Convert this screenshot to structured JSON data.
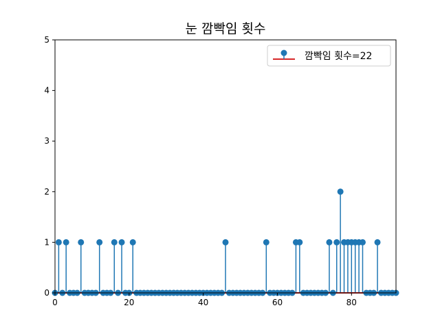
{
  "chart_data": {
    "type": "stem",
    "title": "눈 깜빡임 횟수",
    "xlabel": "",
    "ylabel": "",
    "xlim": [
      0,
      92
    ],
    "ylim": [
      0,
      5
    ],
    "xticks": [
      0,
      20,
      40,
      60,
      80
    ],
    "yticks": [
      0,
      1,
      2,
      3,
      4,
      5
    ],
    "grid": false,
    "legend_position": "top-right",
    "series": [
      {
        "name": "깜빡임 횟수=22",
        "color": "#1f77b4",
        "baseline_color": "#d62728",
        "x": [
          0,
          1,
          2,
          3,
          4,
          5,
          6,
          7,
          8,
          9,
          10,
          11,
          12,
          13,
          14,
          15,
          16,
          17,
          18,
          19,
          20,
          21,
          22,
          23,
          24,
          25,
          26,
          27,
          28,
          29,
          30,
          31,
          32,
          33,
          34,
          35,
          36,
          37,
          38,
          39,
          40,
          41,
          42,
          43,
          44,
          45,
          46,
          47,
          48,
          49,
          50,
          51,
          52,
          53,
          54,
          55,
          56,
          57,
          58,
          59,
          60,
          61,
          62,
          63,
          64,
          65,
          66,
          67,
          68,
          69,
          70,
          71,
          72,
          73,
          74,
          75,
          76,
          77,
          78,
          79,
          80,
          81,
          82,
          83,
          84,
          85,
          86,
          87,
          88,
          89,
          90,
          91,
          92
        ],
        "y": [
          0,
          1,
          0,
          1,
          0,
          0,
          0,
          1,
          0,
          0,
          0,
          0,
          1,
          0,
          0,
          0,
          1,
          0,
          1,
          0,
          0,
          1,
          0,
          0,
          0,
          0,
          0,
          0,
          0,
          0,
          0,
          0,
          0,
          0,
          0,
          0,
          0,
          0,
          0,
          0,
          0,
          0,
          0,
          0,
          0,
          0,
          1,
          0,
          0,
          0,
          0,
          0,
          0,
          0,
          0,
          0,
          0,
          1,
          0,
          0,
          0,
          0,
          0,
          0,
          0,
          1,
          1,
          0,
          0,
          0,
          0,
          0,
          0,
          0,
          1,
          0,
          1,
          2,
          1,
          1,
          1,
          1,
          1,
          1,
          0,
          0,
          0,
          1,
          0,
          0,
          0,
          0,
          0
        ]
      }
    ]
  }
}
